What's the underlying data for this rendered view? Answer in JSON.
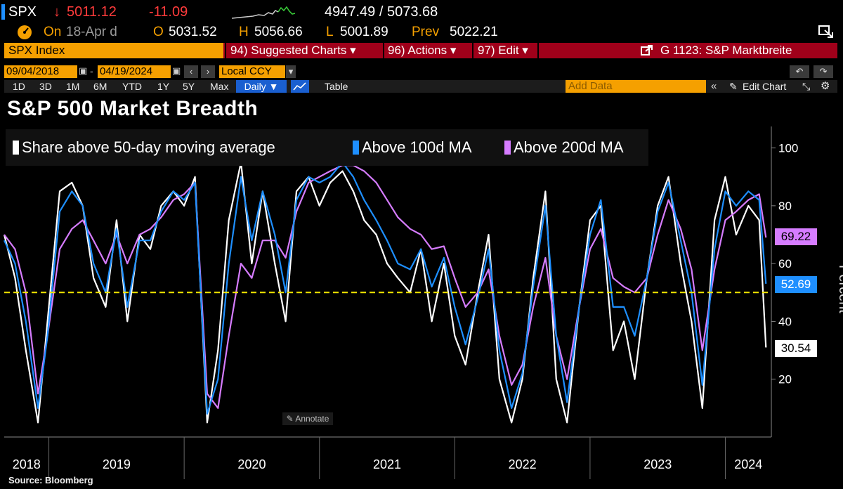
{
  "quote": {
    "ticker": "SPX",
    "arrow": "↓",
    "last": "5011.12",
    "change": "-11.09",
    "range": "4947.49 / 5073.68",
    "on_label": "On",
    "date": "18-Apr d",
    "open_label": "O",
    "open": "5031.52",
    "high_label": "H",
    "high": "5056.66",
    "low_label": "L",
    "low": "5001.89",
    "prev_label": "Prev",
    "prev": "5022.21"
  },
  "toolbar": {
    "security": "SPX Index",
    "suggested": "94) Suggested Charts ▾",
    "actions": "96) Actions ▾",
    "edit": "97) Edit ▾",
    "chart_name": "G 1123: S&P Marktbreite",
    "start_date": "09/04/2018",
    "end_date": "04/19/2024",
    "currency": "Local CCY",
    "periods": [
      "1D",
      "3D",
      "1M",
      "6M",
      "YTD",
      "1Y",
      "5Y",
      "Max"
    ],
    "frequency": "Daily ▼",
    "table": "Table",
    "add_data_placeholder": "Add Data",
    "edit_chart": "Edit Chart"
  },
  "colors": {
    "s50": "#ffffff",
    "s100": "#1e8fff",
    "s200": "#d67cff",
    "ref": "#f2e600",
    "orange": "#f5a000"
  },
  "annotate_label": "Annotate",
  "source": "Source: Bloomberg",
  "chart_data": {
    "type": "line",
    "title": "S&P 500 Market Breadth",
    "ylabel": "Percent",
    "ylim": [
      0,
      105
    ],
    "yticks": [
      20,
      40,
      60,
      80,
      100
    ],
    "xlim": [
      2018.67,
      2024.34
    ],
    "xticks": [
      2018,
      2019,
      2020,
      2021,
      2022,
      2023,
      2024
    ],
    "reference_line": 50,
    "series": [
      {
        "name": "Share above 50-day moving average",
        "color": "#ffffff",
        "last": "30.54",
        "points": [
          [
            2018.67,
            70
          ],
          [
            2018.75,
            55
          ],
          [
            2018.83,
            30
          ],
          [
            2018.92,
            5
          ],
          [
            2018.99,
            40
          ],
          [
            2019.08,
            85
          ],
          [
            2019.17,
            88
          ],
          [
            2019.25,
            80
          ],
          [
            2019.33,
            55
          ],
          [
            2019.42,
            45
          ],
          [
            2019.5,
            75
          ],
          [
            2019.58,
            40
          ],
          [
            2019.67,
            70
          ],
          [
            2019.75,
            65
          ],
          [
            2019.83,
            80
          ],
          [
            2019.92,
            85
          ],
          [
            2020.0,
            80
          ],
          [
            2020.08,
            90
          ],
          [
            2020.17,
            5
          ],
          [
            2020.25,
            30
          ],
          [
            2020.33,
            75
          ],
          [
            2020.42,
            95
          ],
          [
            2020.5,
            60
          ],
          [
            2020.58,
            85
          ],
          [
            2020.67,
            60
          ],
          [
            2020.75,
            40
          ],
          [
            2020.83,
            85
          ],
          [
            2020.92,
            90
          ],
          [
            2021.0,
            80
          ],
          [
            2021.08,
            88
          ],
          [
            2021.17,
            92
          ],
          [
            2021.25,
            85
          ],
          [
            2021.33,
            75
          ],
          [
            2021.42,
            70
          ],
          [
            2021.5,
            60
          ],
          [
            2021.58,
            55
          ],
          [
            2021.67,
            50
          ],
          [
            2021.75,
            65
          ],
          [
            2021.83,
            40
          ],
          [
            2021.92,
            60
          ],
          [
            2022.0,
            35
          ],
          [
            2022.08,
            25
          ],
          [
            2022.17,
            50
          ],
          [
            2022.25,
            70
          ],
          [
            2022.33,
            20
          ],
          [
            2022.42,
            5
          ],
          [
            2022.5,
            20
          ],
          [
            2022.58,
            55
          ],
          [
            2022.67,
            85
          ],
          [
            2022.75,
            20
          ],
          [
            2022.83,
            5
          ],
          [
            2022.92,
            45
          ],
          [
            2023.0,
            75
          ],
          [
            2023.08,
            80
          ],
          [
            2023.17,
            30
          ],
          [
            2023.25,
            40
          ],
          [
            2023.33,
            20
          ],
          [
            2023.42,
            55
          ],
          [
            2023.5,
            80
          ],
          [
            2023.58,
            90
          ],
          [
            2023.67,
            60
          ],
          [
            2023.75,
            40
          ],
          [
            2023.83,
            10
          ],
          [
            2023.92,
            75
          ],
          [
            2024.0,
            90
          ],
          [
            2024.08,
            70
          ],
          [
            2024.17,
            80
          ],
          [
            2024.25,
            75
          ],
          [
            2024.3,
            31
          ]
        ]
      },
      {
        "name": "Above 100d MA",
        "color": "#1e8fff",
        "last": "52.69",
        "points": [
          [
            2018.67,
            68
          ],
          [
            2018.75,
            60
          ],
          [
            2018.83,
            40
          ],
          [
            2018.92,
            10
          ],
          [
            2018.99,
            35
          ],
          [
            2019.08,
            78
          ],
          [
            2019.17,
            85
          ],
          [
            2019.25,
            80
          ],
          [
            2019.33,
            60
          ],
          [
            2019.42,
            50
          ],
          [
            2019.5,
            72
          ],
          [
            2019.58,
            45
          ],
          [
            2019.67,
            68
          ],
          [
            2019.75,
            68
          ],
          [
            2019.83,
            78
          ],
          [
            2019.92,
            85
          ],
          [
            2020.0,
            82
          ],
          [
            2020.08,
            88
          ],
          [
            2020.17,
            8
          ],
          [
            2020.25,
            20
          ],
          [
            2020.33,
            60
          ],
          [
            2020.42,
            90
          ],
          [
            2020.5,
            68
          ],
          [
            2020.58,
            85
          ],
          [
            2020.67,
            70
          ],
          [
            2020.75,
            50
          ],
          [
            2020.83,
            82
          ],
          [
            2020.92,
            90
          ],
          [
            2021.0,
            88
          ],
          [
            2021.08,
            90
          ],
          [
            2021.17,
            95
          ],
          [
            2021.25,
            90
          ],
          [
            2021.33,
            82
          ],
          [
            2021.42,
            75
          ],
          [
            2021.5,
            68
          ],
          [
            2021.58,
            60
          ],
          [
            2021.67,
            58
          ],
          [
            2021.75,
            65
          ],
          [
            2021.83,
            52
          ],
          [
            2021.92,
            62
          ],
          [
            2022.0,
            45
          ],
          [
            2022.08,
            32
          ],
          [
            2022.17,
            48
          ],
          [
            2022.25,
            65
          ],
          [
            2022.33,
            30
          ],
          [
            2022.42,
            10
          ],
          [
            2022.5,
            22
          ],
          [
            2022.58,
            52
          ],
          [
            2022.67,
            80
          ],
          [
            2022.75,
            35
          ],
          [
            2022.83,
            12
          ],
          [
            2022.92,
            45
          ],
          [
            2023.0,
            70
          ],
          [
            2023.08,
            82
          ],
          [
            2023.17,
            45
          ],
          [
            2023.25,
            45
          ],
          [
            2023.33,
            35
          ],
          [
            2023.42,
            55
          ],
          [
            2023.5,
            78
          ],
          [
            2023.58,
            88
          ],
          [
            2023.67,
            68
          ],
          [
            2023.75,
            50
          ],
          [
            2023.83,
            18
          ],
          [
            2023.92,
            65
          ],
          [
            2024.0,
            85
          ],
          [
            2024.08,
            80
          ],
          [
            2024.17,
            85
          ],
          [
            2024.25,
            82
          ],
          [
            2024.3,
            53
          ]
        ]
      },
      {
        "name": "Above 200d MA",
        "color": "#d67cff",
        "last": "69.22",
        "points": [
          [
            2018.67,
            70
          ],
          [
            2018.75,
            65
          ],
          [
            2018.83,
            50
          ],
          [
            2018.92,
            15
          ],
          [
            2018.99,
            35
          ],
          [
            2019.08,
            65
          ],
          [
            2019.17,
            72
          ],
          [
            2019.25,
            75
          ],
          [
            2019.33,
            68
          ],
          [
            2019.42,
            60
          ],
          [
            2019.5,
            70
          ],
          [
            2019.58,
            60
          ],
          [
            2019.67,
            70
          ],
          [
            2019.75,
            72
          ],
          [
            2019.83,
            76
          ],
          [
            2019.92,
            82
          ],
          [
            2020.0,
            84
          ],
          [
            2020.08,
            88
          ],
          [
            2020.17,
            15
          ],
          [
            2020.25,
            10
          ],
          [
            2020.33,
            35
          ],
          [
            2020.42,
            60
          ],
          [
            2020.5,
            55
          ],
          [
            2020.58,
            68
          ],
          [
            2020.67,
            68
          ],
          [
            2020.75,
            62
          ],
          [
            2020.83,
            78
          ],
          [
            2020.92,
            88
          ],
          [
            2021.0,
            90
          ],
          [
            2021.08,
            92
          ],
          [
            2021.17,
            94
          ],
          [
            2021.25,
            94
          ],
          [
            2021.33,
            92
          ],
          [
            2021.42,
            88
          ],
          [
            2021.5,
            82
          ],
          [
            2021.58,
            76
          ],
          [
            2021.67,
            72
          ],
          [
            2021.75,
            70
          ],
          [
            2021.83,
            65
          ],
          [
            2021.92,
            66
          ],
          [
            2022.0,
            55
          ],
          [
            2022.08,
            45
          ],
          [
            2022.17,
            50
          ],
          [
            2022.25,
            58
          ],
          [
            2022.33,
            35
          ],
          [
            2022.42,
            18
          ],
          [
            2022.5,
            25
          ],
          [
            2022.58,
            45
          ],
          [
            2022.67,
            62
          ],
          [
            2022.75,
            35
          ],
          [
            2022.83,
            20
          ],
          [
            2022.92,
            45
          ],
          [
            2023.0,
            65
          ],
          [
            2023.08,
            72
          ],
          [
            2023.17,
            55
          ],
          [
            2023.25,
            52
          ],
          [
            2023.33,
            50
          ],
          [
            2023.42,
            55
          ],
          [
            2023.5,
            70
          ],
          [
            2023.58,
            82
          ],
          [
            2023.67,
            72
          ],
          [
            2023.75,
            58
          ],
          [
            2023.83,
            30
          ],
          [
            2023.92,
            58
          ],
          [
            2024.0,
            75
          ],
          [
            2024.08,
            78
          ],
          [
            2024.17,
            82
          ],
          [
            2024.25,
            84
          ],
          [
            2024.3,
            69
          ]
        ]
      }
    ]
  }
}
